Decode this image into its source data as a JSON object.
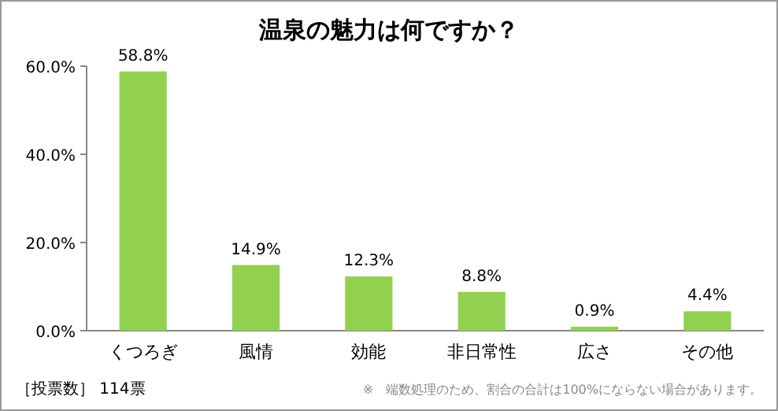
{
  "chart_data": {
    "type": "bar",
    "title": "温泉の魅力は何ですか？",
    "categories": [
      "くつろぎ",
      "風情",
      "効能",
      "非日常性",
      "広さ",
      "その他"
    ],
    "values": [
      58.8,
      14.9,
      12.3,
      8.8,
      0.9,
      4.4
    ],
    "value_labels": [
      "58.8%",
      "14.9%",
      "12.3%",
      "8.8%",
      "0.9%",
      "4.4%"
    ],
    "color": "#92d050",
    "ylim": [
      0,
      60
    ],
    "yticks": [
      {
        "value": 0,
        "label": "0.0%"
      },
      {
        "value": 20,
        "label": "20.0%"
      },
      {
        "value": 40,
        "label": "40.0%"
      },
      {
        "value": 60,
        "label": "60.0%"
      }
    ],
    "grid": false,
    "annotations": [
      "［投票数］ 114票",
      "※　端数処理のため、割合の合計は100%にならない場合があります。"
    ]
  }
}
